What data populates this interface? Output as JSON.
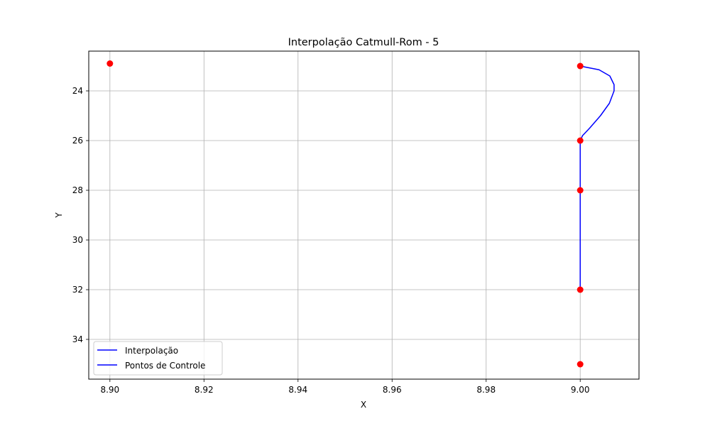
{
  "chart_data": {
    "type": "line",
    "title": "Interpolação Catmull-Rom - 5",
    "xlabel": "X",
    "ylabel": "Y",
    "xlim": [
      8.8955,
      9.0125
    ],
    "ylim": [
      22.4,
      35.6
    ],
    "y_inverted": true,
    "grid": true,
    "legend_position": "lower-left",
    "x_ticks": [
      "8.90",
      "8.92",
      "8.94",
      "8.96",
      "8.98",
      "9.00"
    ],
    "x_tick_values": [
      8.9,
      8.92,
      8.94,
      8.96,
      8.98,
      9.0
    ],
    "y_ticks": [
      "24",
      "26",
      "28",
      "30",
      "32",
      "34"
    ],
    "y_tick_values": [
      24,
      26,
      28,
      30,
      32,
      34
    ],
    "series": [
      {
        "name": "Interpolação",
        "kind": "line",
        "color": "#0000ff",
        "x": [
          9.0,
          9.0013,
          9.004,
          9.0063,
          9.0072,
          9.0072,
          9.0062,
          9.0043,
          9.002,
          9.0005,
          9.0,
          9.0,
          9.0,
          9.0
        ],
        "y": [
          23.0,
          23.05,
          23.15,
          23.4,
          23.75,
          24.0,
          24.5,
          25.0,
          25.5,
          25.8,
          26.0,
          28.0,
          30.0,
          32.0
        ]
      },
      {
        "name": "Pontos de Controle",
        "kind": "scatter",
        "color": "#ff0000",
        "legend_color": "#0000ff",
        "x": [
          8.9,
          9.0,
          9.0,
          9.0,
          9.0,
          9.0
        ],
        "y": [
          22.9,
          23.0,
          26.0,
          28.0,
          32.0,
          35.0
        ]
      }
    ]
  }
}
